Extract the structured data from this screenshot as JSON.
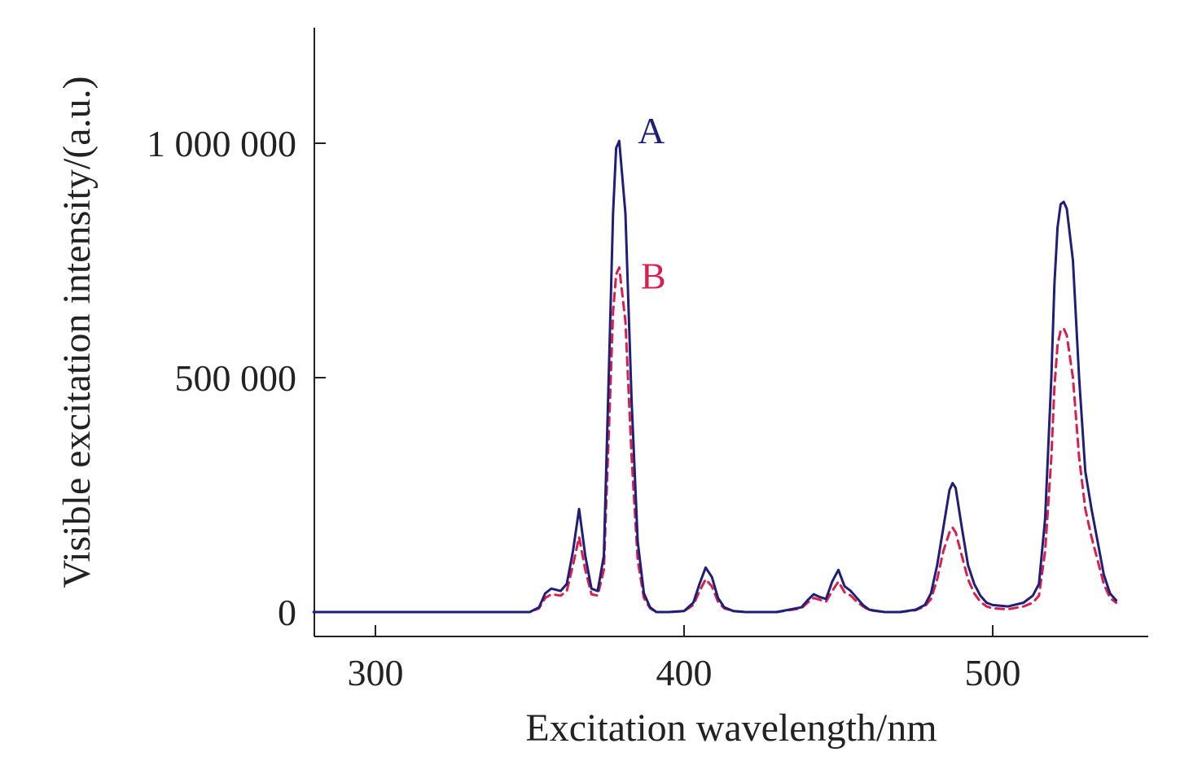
{
  "chart_data": {
    "type": "line",
    "xlabel": "Excitation wavelength/nm",
    "ylabel": "Visible excitation intensity/(a.u.)",
    "xlim": [
      280,
      550
    ],
    "ylim": [
      -50000,
      1250000
    ],
    "xticks": [
      {
        "value": 300,
        "label": "300"
      },
      {
        "value": 400,
        "label": "400"
      },
      {
        "value": 500,
        "label": "500"
      }
    ],
    "yticks": [
      {
        "value": 0,
        "label": "0"
      },
      {
        "value": 500000,
        "label": "500 000"
      },
      {
        "value": 1000000,
        "label": "1 000 000"
      }
    ],
    "grid": false,
    "series": [
      {
        "name": "A",
        "color": "#1f1f7a",
        "style": "solid",
        "label_at": [
          385,
          1000000
        ],
        "x": [
          280,
          350,
          353,
          355,
          357,
          360,
          362,
          364,
          366,
          368,
          370,
          372,
          374,
          376,
          377,
          378,
          379,
          381,
          383,
          385,
          387,
          389,
          391,
          395,
          400,
          403,
          405,
          407,
          409,
          411,
          413,
          416,
          420,
          430,
          438,
          440,
          442,
          444,
          446,
          448,
          450,
          452,
          454,
          456,
          458,
          460,
          465,
          470,
          475,
          478,
          480,
          482,
          484,
          486,
          487,
          488,
          490,
          492,
          494,
          496,
          498,
          500,
          505,
          510,
          513,
          515,
          517,
          519,
          520,
          521,
          522,
          523,
          524,
          526,
          528,
          530,
          532,
          534,
          536,
          538,
          540
        ],
        "y": [
          0,
          0,
          10000,
          40000,
          50000,
          45000,
          60000,
          130000,
          220000,
          120000,
          50000,
          45000,
          120000,
          600000,
          850000,
          990000,
          1005000,
          850000,
          450000,
          150000,
          40000,
          10000,
          0,
          0,
          2000,
          20000,
          60000,
          95000,
          75000,
          30000,
          10000,
          2000,
          0,
          0,
          10000,
          25000,
          38000,
          32000,
          28000,
          65000,
          90000,
          55000,
          45000,
          30000,
          15000,
          5000,
          0,
          0,
          5000,
          15000,
          40000,
          100000,
          180000,
          260000,
          275000,
          265000,
          180000,
          100000,
          60000,
          35000,
          20000,
          15000,
          12000,
          20000,
          35000,
          60000,
          200000,
          500000,
          700000,
          820000,
          870000,
          875000,
          860000,
          750000,
          500000,
          300000,
          220000,
          150000,
          80000,
          40000,
          25000
        ]
      },
      {
        "name": "B",
        "color": "#d81f4d",
        "style": "dashed",
        "label_at": [
          386,
          690000
        ],
        "x": [
          280,
          350,
          353,
          355,
          357,
          360,
          362,
          364,
          366,
          368,
          370,
          372,
          374,
          376,
          377,
          378,
          379,
          381,
          383,
          385,
          387,
          389,
          391,
          395,
          400,
          403,
          405,
          407,
          409,
          411,
          413,
          416,
          420,
          430,
          438,
          440,
          442,
          444,
          446,
          448,
          450,
          452,
          454,
          456,
          458,
          460,
          465,
          470,
          475,
          478,
          480,
          482,
          484,
          486,
          487,
          488,
          490,
          492,
          494,
          496,
          498,
          500,
          505,
          510,
          513,
          515,
          517,
          519,
          520,
          521,
          522,
          523,
          524,
          526,
          528,
          530,
          532,
          534,
          536,
          538,
          540
        ],
        "y": [
          0,
          0,
          8000,
          30000,
          38000,
          35000,
          45000,
          100000,
          160000,
          90000,
          38000,
          35000,
          90000,
          450000,
          640000,
          720000,
          735000,
          620000,
          330000,
          110000,
          30000,
          8000,
          0,
          0,
          2000,
          15000,
          45000,
          70000,
          55000,
          22000,
          8000,
          2000,
          0,
          0,
          8000,
          20000,
          30000,
          26000,
          22000,
          45000,
          65000,
          42000,
          35000,
          22000,
          12000,
          4000,
          0,
          0,
          4000,
          12000,
          28000,
          70000,
          130000,
          170000,
          180000,
          170000,
          120000,
          70000,
          40000,
          22000,
          12000,
          8000,
          6000,
          12000,
          20000,
          35000,
          130000,
          330000,
          480000,
          570000,
          600000,
          605000,
          590000,
          500000,
          330000,
          220000,
          160000,
          110000,
          60000,
          30000,
          20000
        ]
      }
    ]
  }
}
